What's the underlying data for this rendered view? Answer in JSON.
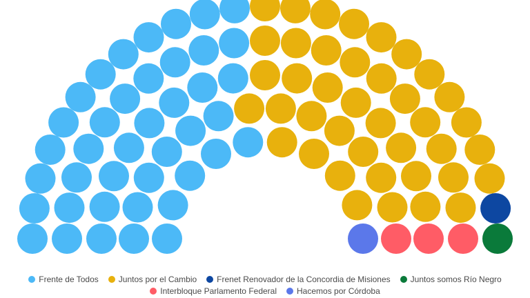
{
  "chart_data": {
    "type": "parliament",
    "series": [
      {
        "name": "Frente de Todos",
        "seats": 41,
        "color": "#4cb9f7"
      },
      {
        "name": "Juntos por el Cambio",
        "seats": 40,
        "color": "#e8b10d"
      },
      {
        "name": "Frenet Renovador de la Concordia de Misiones",
        "seats": 1,
        "color": "#0d47a1"
      },
      {
        "name": "Juntos somos Río Negro",
        "seats": 1,
        "color": "#0a7a3a"
      },
      {
        "name": "Interbloque Parlamento Federal",
        "seats": 3,
        "color": "#ff5c66"
      },
      {
        "name": "Hacemos por Córdoba",
        "seats": 1,
        "color": "#5b78ea"
      }
    ],
    "total_seats": 87,
    "legend_position": "bottom"
  }
}
